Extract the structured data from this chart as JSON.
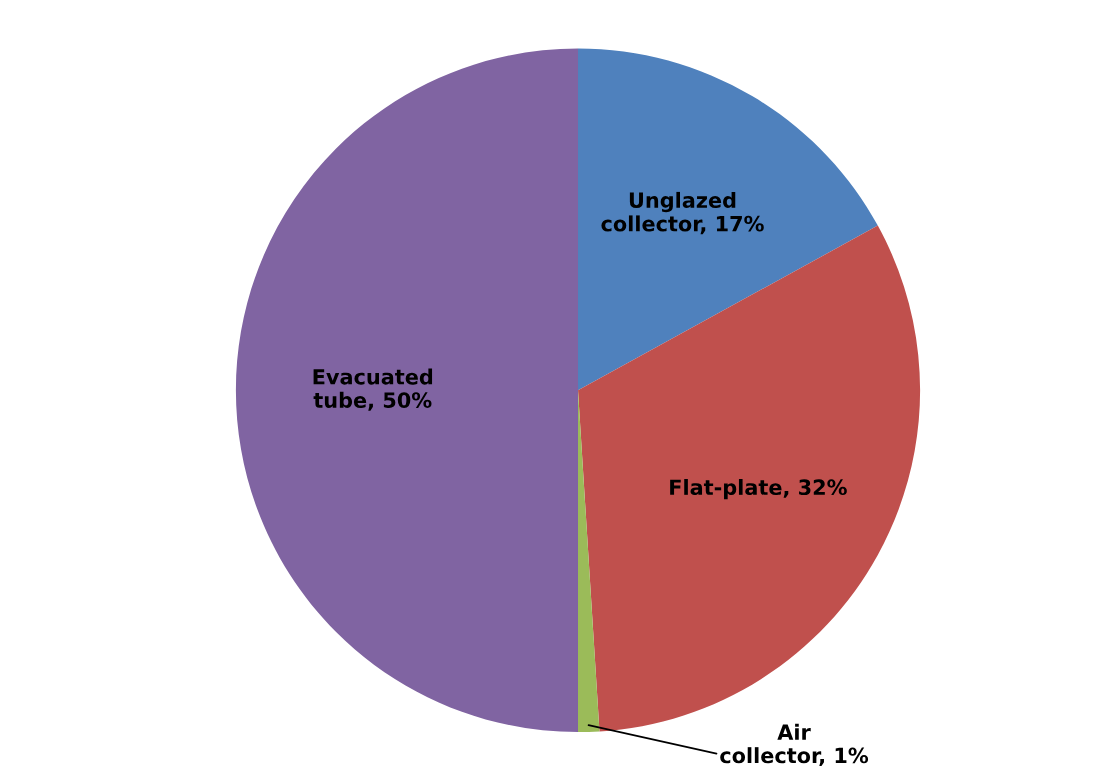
{
  "chart_data": {
    "type": "pie",
    "categories": [
      "Unglazed collector",
      "Flat-plate",
      "Air collector",
      "Evacuated tube"
    ],
    "values": [
      17,
      32,
      1,
      50
    ],
    "value_labels": [
      "17%",
      "32%",
      "1%",
      "50%"
    ],
    "colors": [
      "#4f81bd",
      "#c0504d",
      "#9bbb59",
      "#8064a2"
    ]
  }
}
